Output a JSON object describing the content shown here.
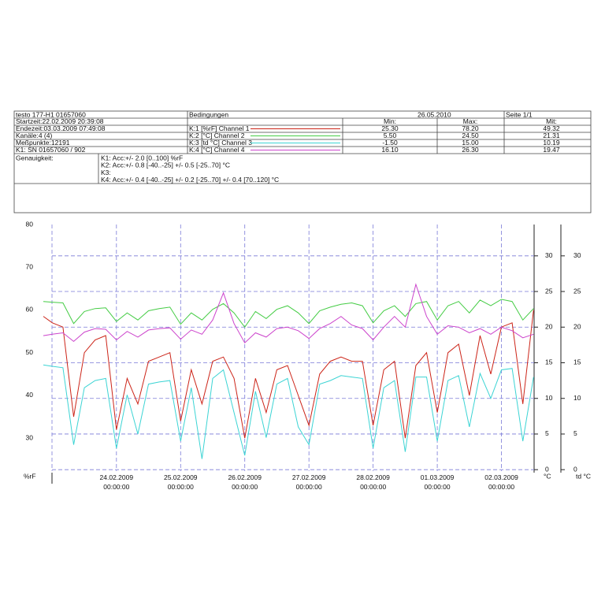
{
  "report": {
    "device": "testo 177-H1 01657060",
    "conditions": "Bedingungen",
    "date": "26.05.2010",
    "page": "Seite 1/1",
    "info": [
      "Startzeit:22.02.2009 20:39:08",
      "Endezeit:03.03.2009 07:49:08",
      "Kanäle:4 (4)",
      "Meßpunkte:12191",
      "K1: SN 01657060 / 902"
    ],
    "stats_header": [
      "Min:",
      "Max:",
      "Mit:"
    ],
    "stats": [
      [
        "25.30",
        "78.20",
        "49.32"
      ],
      [
        "5.50",
        "24.50",
        "21.31"
      ],
      [
        "-1.50",
        "15.00",
        "10.19"
      ],
      [
        "16.10",
        "26.30",
        "19.47"
      ]
    ],
    "accuracy_label": "Genauigkeit:",
    "accuracy": [
      "K1: Acc:+/- 2.0 [0..100] %rF",
      "K2: Acc:+/- 0.8 [-40..-25] +/- 0.5 [-25..70] °C",
      "K3:",
      "K4: Acc:+/- 0.4 [-40..-25] +/- 0.2 [-25..70] +/- 0.4 [70..120] °C"
    ]
  },
  "chart_data": {
    "type": "line",
    "y_label": "%rF",
    "y2_label": "°C",
    "y3_label": "td °C",
    "xlim": [
      "22.02.2009 20:39:08",
      "02.03.2009 12:13:00"
    ],
    "xticks": [
      "24.02.2009 00:00:00",
      "25.02.2009 00:00:00",
      "26.02.2009 00:00:00",
      "27.02.2009 00:00:00",
      "28.02.2009 00:00:00",
      "01.03.2009 00:00:00",
      "02.03.2009 00:00:00"
    ],
    "ylim": [
      22.3,
      80
    ],
    "yticks": [
      30,
      40,
      50,
      60,
      70,
      80
    ],
    "y2lim": [
      -0.2,
      34.4
    ],
    "y2ticks": [
      0,
      5,
      10,
      15,
      20,
      25,
      30
    ],
    "y3lim": [
      -0.2,
      34.4
    ],
    "y3ticks": [
      0,
      5,
      10,
      15,
      20,
      25,
      30
    ],
    "grid": true,
    "x": [
      "22.02.2009 20:39:08",
      "23.02.2009 00:00:00",
      "23.02.2009 04:00:00",
      "23.02.2009 08:00:00",
      "23.02.2009 12:00:00",
      "23.02.2009 16:00:00",
      "23.02.2009 20:00:00",
      "24.02.2009 00:00:00",
      "24.02.2009 04:00:00",
      "24.02.2009 08:00:00",
      "24.02.2009 12:00:00",
      "24.02.2009 16:00:00",
      "24.02.2009 20:00:00",
      "25.02.2009 00:00:00",
      "25.02.2009 04:00:00",
      "25.02.2009 08:00:00",
      "25.02.2009 12:00:00",
      "25.02.2009 16:00:00",
      "25.02.2009 20:00:00",
      "26.02.2009 00:00:00",
      "26.02.2009 04:00:00",
      "26.02.2009 08:00:00",
      "26.02.2009 12:00:00",
      "26.02.2009 16:00:00",
      "26.02.2009 20:00:00",
      "27.02.2009 00:00:00",
      "27.02.2009 04:00:00",
      "27.02.2009 08:00:00",
      "27.02.2009 12:00:00",
      "27.02.2009 16:00:00",
      "27.02.2009 20:00:00",
      "28.02.2009 00:00:00",
      "28.02.2009 04:00:00",
      "28.02.2009 08:00:00",
      "28.02.2009 12:00:00",
      "28.02.2009 16:00:00",
      "28.02.2009 20:00:00",
      "01.03.2009 00:00:00",
      "01.03.2009 04:00:00",
      "01.03.2009 08:00:00",
      "01.03.2009 12:00:00",
      "01.03.2009 16:00:00",
      "01.03.2009 20:00:00",
      "02.03.2009 00:00:00",
      "02.03.2009 04:00:00",
      "02.03.2009 08:00:00",
      "02.03.2009 12:00:00"
    ],
    "series": [
      {
        "name": "K:1 [%rF] Channel 1",
        "color": "#cc2418",
        "axis": "y",
        "values": [
          58.5,
          57,
          56,
          35,
          50,
          53,
          54,
          32,
          44,
          38,
          48,
          49,
          50,
          34,
          46,
          38,
          48,
          49,
          44,
          30,
          44,
          36,
          46,
          47,
          40,
          33,
          45,
          48,
          49,
          48,
          48,
          33,
          46,
          48,
          30,
          47,
          50,
          36,
          50,
          52,
          40,
          54,
          45,
          56,
          57,
          38,
          60
        ]
      },
      {
        "name": "K:2 [°C] Channel 2",
        "color": "#44cc44",
        "axis": "y2",
        "values": [
          23.6,
          23.5,
          23.4,
          20.5,
          22.2,
          22.6,
          22.7,
          20.8,
          22.0,
          21.0,
          22.3,
          22.6,
          22.8,
          20.4,
          22.0,
          21.0,
          22.5,
          23.3,
          22.0,
          20.0,
          22.2,
          21.2,
          22.5,
          23.0,
          22.0,
          20.5,
          22.3,
          22.8,
          23.2,
          23.4,
          23.0,
          20.6,
          22.3,
          23.0,
          21.5,
          23.3,
          23.6,
          21.0,
          23.0,
          23.6,
          22.0,
          23.8,
          23.0,
          23.9,
          23.6,
          21.0,
          22.6
        ]
      },
      {
        "name": "K:3 [td °C] Channel 3",
        "color": "#3cd4d4",
        "axis": "y3",
        "values": [
          14.7,
          14.5,
          14.3,
          3.5,
          11.5,
          12.5,
          12.8,
          3.0,
          10.5,
          5.0,
          12.0,
          12.3,
          12.5,
          4.0,
          11.5,
          1.5,
          12.8,
          14.0,
          8.0,
          2.0,
          11.0,
          4.5,
          12.0,
          12.8,
          6.0,
          3.5,
          12.0,
          12.5,
          13.2,
          13.0,
          12.8,
          3.0,
          11.5,
          12.5,
          2.5,
          13.0,
          13.0,
          4.0,
          12.5,
          13.2,
          6.0,
          13.5,
          10.0,
          14.0,
          14.2,
          4.0,
          13.0
        ]
      },
      {
        "name": "K:4 [°C] Channel 4",
        "color": "#cc44cc",
        "axis": "y2",
        "values": [
          18.8,
          19.0,
          19.2,
          18.0,
          19.3,
          19.8,
          19.7,
          18.2,
          19.4,
          18.6,
          19.6,
          19.8,
          19.9,
          18.3,
          19.6,
          19.0,
          21.0,
          24.8,
          20.5,
          17.8,
          19.2,
          18.6,
          19.8,
          20.0,
          19.5,
          18.4,
          19.8,
          20.5,
          21.5,
          20.3,
          19.8,
          18.2,
          20.0,
          21.5,
          20.0,
          26.0,
          21.5,
          19.0,
          20.2,
          20.0,
          19.2,
          19.8,
          19.0,
          20.0,
          19.5,
          18.5,
          19.0
        ]
      }
    ]
  }
}
